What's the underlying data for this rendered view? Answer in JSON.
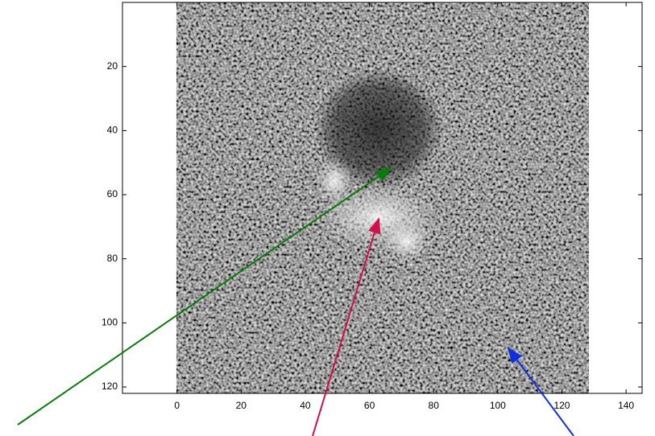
{
  "chart_data": {
    "type": "image",
    "xlim": [
      -17,
      145
    ],
    "ylim": [
      0,
      122
    ],
    "y_reversed": true,
    "xticks": [
      0,
      20,
      40,
      60,
      80,
      100,
      120,
      140
    ],
    "yticks": [
      20,
      40,
      60,
      80,
      100,
      120
    ],
    "box": true
  }
}
